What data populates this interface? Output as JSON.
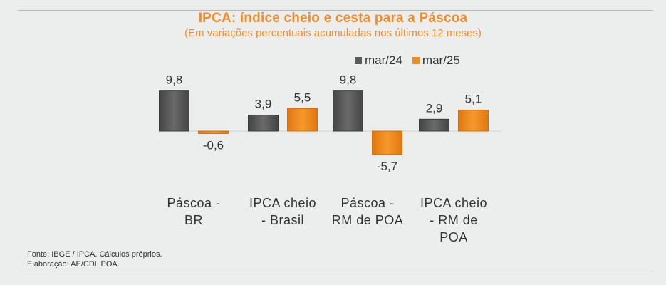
{
  "header": {
    "title": "IPCA: índice cheio e cesta para a Páscoa",
    "subtitle": "(Em variações percentuais acumuladas nos últimos 12 meses)"
  },
  "footer": {
    "source": "Fonte: IBGE / IPCA. Cálculos próprios.",
    "credit": "Elaboração: AE/CDL POA."
  },
  "colors": {
    "series1": "#5b5b5b",
    "series2": "#f28c1e",
    "title": "#f28c28"
  },
  "chart_data": {
    "type": "bar",
    "title": "IPCA: índice cheio e cesta para a Páscoa",
    "subtitle": "(Em variações percentuais acumuladas nos últimos 12 meses)",
    "categories": [
      "Páscoa - BR",
      "IPCA cheio - Brasil",
      "Páscoa - RM de POA",
      "IPCA cheio - RM de POA"
    ],
    "category_lines": [
      [
        "Páscoa -",
        "BR"
      ],
      [
        "IPCA cheio",
        "- Brasil"
      ],
      [
        "Páscoa -",
        "RM de POA"
      ],
      [
        "IPCA cheio",
        "- RM de",
        "POA"
      ]
    ],
    "series": [
      {
        "name": "mar/24",
        "values": [
          9.8,
          3.9,
          9.8,
          2.9
        ],
        "labels": [
          "9,8",
          "3,9",
          "9,8",
          "2,9"
        ]
      },
      {
        "name": "mar/25",
        "values": [
          -0.6,
          5.5,
          -5.7,
          5.1
        ],
        "labels": [
          "-0,6",
          "5,5",
          "-5,7",
          "5,1"
        ]
      }
    ],
    "ylim": [
      -6,
      10
    ],
    "grid": false,
    "legend": "top-right"
  }
}
